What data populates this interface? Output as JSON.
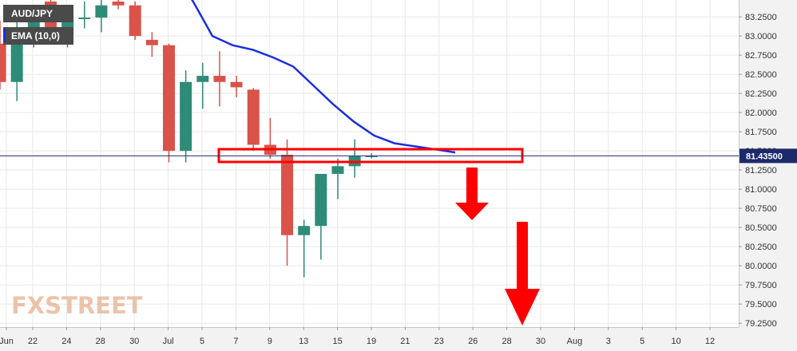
{
  "chart_data": {
    "type": "candlestick",
    "symbol": "AUD/JPY",
    "indicator": "EMA (10,0)",
    "watermark": "FXSTREET",
    "last_price": "81.43500",
    "x_tick_labels": [
      "Jun",
      "22",
      "24",
      "28",
      "30",
      "Jul",
      "5",
      "7",
      "9",
      "13",
      "15",
      "19",
      "21",
      "23",
      "26",
      "28",
      "30",
      "Aug",
      "3",
      "5",
      "10",
      "12"
    ],
    "y_tick_labels": [
      "83.2500",
      "83.0000",
      "82.7500",
      "82.5000",
      "82.2500",
      "82.0000",
      "81.7500",
      "81.5000",
      "81.2500",
      "81.0000",
      "80.7500",
      "80.5000",
      "80.2500",
      "80.0000",
      "79.7500",
      "79.5000",
      "79.2500"
    ],
    "ylim": [
      79.2,
      83.47
    ],
    "candles": [
      {
        "o": 82.9,
        "h": 83.2,
        "l": 82.3,
        "c": 82.4
      },
      {
        "o": 82.4,
        "h": 83.35,
        "l": 82.15,
        "c": 83.1
      },
      {
        "o": 83.1,
        "h": 83.3,
        "l": 82.85,
        "c": 83.2
      },
      {
        "o": 83.45,
        "h": 83.55,
        "l": 82.95,
        "c": 83.0
      },
      {
        "o": 83.0,
        "h": 83.25,
        "l": 82.85,
        "c": 83.22
      },
      {
        "o": 83.22,
        "h": 83.45,
        "l": 83.1,
        "c": 83.24
      },
      {
        "o": 83.24,
        "h": 83.5,
        "l": 83.05,
        "c": 83.4
      },
      {
        "o": 83.45,
        "h": 83.48,
        "l": 83.35,
        "c": 83.4
      },
      {
        "o": 83.4,
        "h": 83.45,
        "l": 82.95,
        "c": 83.0
      },
      {
        "o": 82.95,
        "h": 83.05,
        "l": 82.73,
        "c": 82.88
      },
      {
        "o": 82.88,
        "h": 82.9,
        "l": 81.35,
        "c": 81.5
      },
      {
        "o": 81.5,
        "h": 82.55,
        "l": 81.35,
        "c": 82.4
      },
      {
        "o": 82.4,
        "h": 82.65,
        "l": 82.05,
        "c": 82.48
      },
      {
        "o": 82.48,
        "h": 82.8,
        "l": 82.08,
        "c": 82.4
      },
      {
        "o": 82.4,
        "h": 82.48,
        "l": 82.2,
        "c": 82.33
      },
      {
        "o": 82.3,
        "h": 82.32,
        "l": 81.5,
        "c": 81.58
      },
      {
        "o": 81.58,
        "h": 81.93,
        "l": 81.4,
        "c": 81.45
      },
      {
        "o": 81.45,
        "h": 81.65,
        "l": 80.0,
        "c": 80.4
      },
      {
        "o": 80.4,
        "h": 80.6,
        "l": 79.85,
        "c": 80.52
      },
      {
        "o": 80.52,
        "h": 81.2,
        "l": 80.08,
        "c": 81.2
      },
      {
        "o": 81.2,
        "h": 81.4,
        "l": 80.87,
        "c": 81.3
      },
      {
        "o": 81.3,
        "h": 81.65,
        "l": 81.15,
        "c": 81.43
      },
      {
        "o": 81.43,
        "h": 81.47,
        "l": 81.4,
        "c": 81.435
      }
    ],
    "ema": [
      83.8,
      83.7,
      83.47,
      83.0,
      82.88,
      82.82,
      82.72,
      82.6,
      82.35,
      82.1,
      81.88,
      81.7,
      81.6,
      81.56,
      81.52,
      81.48
    ],
    "colors": {
      "up": "#2e8b78",
      "down": "#d9534a",
      "ema": "#1a2ee0",
      "annotation": "#ff0000",
      "price_line": "#1c2a6b"
    }
  }
}
